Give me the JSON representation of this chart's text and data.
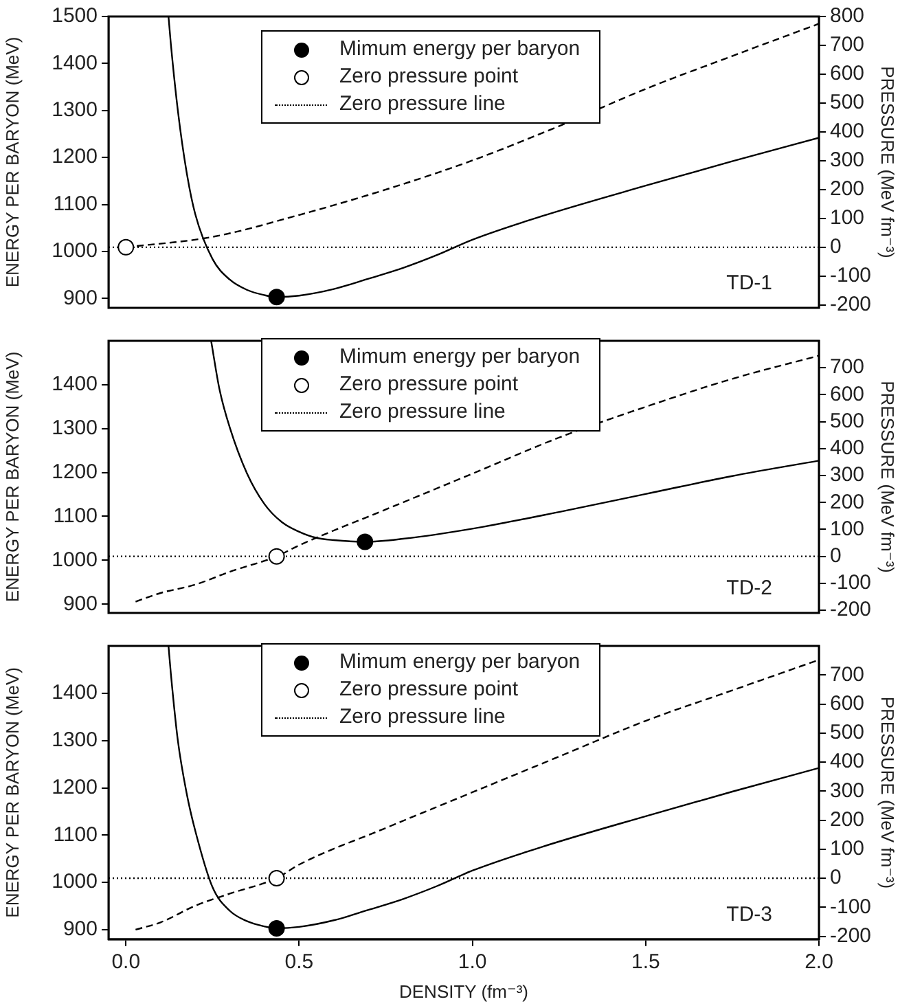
{
  "chart_data": [
    {
      "type": "line",
      "ylabel": "ENERGY PER BARYON (MeV)",
      "y2label": "PRESSURE (MeV fm⁻³)",
      "xlim": [
        -0.05,
        2.0
      ],
      "xticks": [
        0,
        0.5,
        1.0,
        1.5,
        2.0
      ],
      "ylim": [
        880,
        1500
      ],
      "yticks": [
        900,
        1000,
        1100,
        1200,
        1300,
        1400,
        1500
      ],
      "y2lim": [
        -210,
        800
      ],
      "y2ticks": [
        -200,
        -100,
        0,
        100,
        200,
        300,
        400,
        500,
        600,
        700,
        800
      ],
      "tick_labels": "y",
      "legend": "top",
      "annotations": [
        "TD-1"
      ],
      "series": [
        {
          "color": "#000000",
          "line_style": "solid",
          "marker": "none",
          "x": [
            0.123,
            0.13,
            0.15,
            0.175,
            0.2,
            0.25,
            0.3,
            0.35,
            0.4,
            0.435,
            0.5,
            0.6,
            0.7,
            0.8,
            0.9,
            1.0,
            1.2,
            1.5,
            1.75,
            2.0
          ],
          "values": [
            1500,
            1440,
            1300,
            1170,
            1080,
            984,
            940,
            918,
            907,
            903,
            906,
            920,
            942,
            965,
            993,
            1025,
            1075,
            1140,
            1192,
            1242
          ]
        },
        {
          "color": "#000000",
          "line_style": "dashed",
          "marker": "none",
          "axis": "y2",
          "x": [
            0,
            0.25,
            0.5,
            0.75,
            1.0,
            1.25,
            1.5,
            1.75,
            2.0
          ],
          "values": [
            0,
            36,
            112,
            200,
            301,
            420,
            549,
            663,
            775
          ]
        },
        {
          "type": "scatter",
          "name": "Mimum energy per baryon",
          "color": "#000000",
          "marker": "circle",
          "x": [
            0.435
          ],
          "values": [
            903
          ]
        },
        {
          "type": "scatter",
          "name": "Zero pressure point",
          "color": "#ffffff",
          "marker": "circle",
          "axis": "y2",
          "x": [
            0
          ],
          "values": [
            0
          ]
        },
        {
          "type": "line",
          "name": "Zero pressure line",
          "color": "#000000",
          "line_style": "dotted",
          "marker": "none",
          "axis": "y2",
          "x": [
            -0.05,
            2.0
          ],
          "values": [
            0,
            0
          ]
        }
      ]
    },
    {
      "type": "line",
      "ylabel": "ENERGY PER BARYON (MeV)",
      "y2label": "PRESSURE (MeV fm⁻³)",
      "xlim": [
        -0.05,
        2.0
      ],
      "xticks": [
        0,
        0.5,
        1.0,
        1.5,
        2.0
      ],
      "ylim": [
        880,
        1500
      ],
      "yticks": [
        900,
        1000,
        1100,
        1200,
        1300,
        1400
      ],
      "y2lim": [
        -210,
        800
      ],
      "y2ticks": [
        -200,
        -100,
        0,
        100,
        200,
        300,
        400,
        500,
        600,
        700
      ],
      "tick_labels": "y",
      "legend": "top",
      "annotations": [
        "TD-2"
      ],
      "series": [
        {
          "color": "#000000",
          "line_style": "solid",
          "marker": "none",
          "x": [
            0.246,
            0.27,
            0.3,
            0.35,
            0.4,
            0.45,
            0.5,
            0.55,
            0.6,
            0.69,
            0.8,
            1.0,
            1.25,
            1.5,
            1.75,
            2.0
          ],
          "values": [
            1500,
            1390,
            1302,
            1197,
            1128,
            1087,
            1065,
            1051,
            1046,
            1042,
            1049,
            1072,
            1110,
            1151,
            1192,
            1227
          ]
        },
        {
          "color": "#000000",
          "line_style": "dashed",
          "marker": "none",
          "axis": "y2",
          "x": [
            0.028,
            0.1,
            0.2,
            0.3,
            0.435,
            0.5,
            0.75,
            1.0,
            1.25,
            1.5,
            1.75,
            2.0
          ],
          "values": [
            -168,
            -136,
            -105,
            -57,
            0,
            41,
            174,
            307,
            441,
            555,
            659,
            745
          ]
        },
        {
          "type": "scatter",
          "name": "Mimum energy per baryon",
          "color": "#000000",
          "marker": "circle",
          "x": [
            0.69
          ],
          "values": [
            1042
          ]
        },
        {
          "type": "scatter",
          "name": "Zero pressure point",
          "color": "#ffffff",
          "marker": "circle",
          "axis": "y2",
          "x": [
            0.435
          ],
          "values": [
            0
          ]
        },
        {
          "type": "line",
          "name": "Zero pressure line",
          "color": "#000000",
          "line_style": "dotted",
          "marker": "none",
          "axis": "y2",
          "x": [
            -0.05,
            2.0
          ],
          "values": [
            0,
            0
          ]
        }
      ]
    },
    {
      "type": "line",
      "xlabel": "DENSITY (fm⁻³)",
      "ylabel": "ENERGY PER BARYON (MeV)",
      "y2label": "PRESSURE (MeV fm⁻³)",
      "xlim": [
        -0.05,
        2.0
      ],
      "xticks": [
        {
          "value": 0,
          "label": "0.0"
        },
        0.5,
        {
          "value": 1,
          "label": "1.0"
        },
        1.5,
        {
          "value": 2,
          "label": "2.0"
        }
      ],
      "ylim": [
        880,
        1500
      ],
      "yticks": [
        900,
        1000,
        1100,
        1200,
        1300,
        1400
      ],
      "y2lim": [
        -210,
        800
      ],
      "y2ticks": [
        -200,
        -100,
        0,
        100,
        200,
        300,
        400,
        500,
        600,
        700
      ],
      "legend": "top",
      "annotations": [
        "TD-3"
      ],
      "series": [
        {
          "color": "#000000",
          "line_style": "solid",
          "marker": "none",
          "x": [
            0.123,
            0.13,
            0.15,
            0.175,
            0.2,
            0.25,
            0.3,
            0.35,
            0.4,
            0.435,
            0.5,
            0.6,
            0.7,
            0.8,
            0.9,
            1.0,
            1.2,
            1.5,
            1.75,
            2.0
          ],
          "values": [
            1500,
            1440,
            1300,
            1190,
            1110,
            990,
            940,
            918,
            907,
            903,
            906,
            920,
            942,
            965,
            993,
            1025,
            1075,
            1140,
            1192,
            1242
          ]
        },
        {
          "color": "#000000",
          "line_style": "dashed",
          "marker": "none",
          "axis": "y2",
          "x": [
            0.028,
            0.1,
            0.2,
            0.3,
            0.435,
            0.5,
            0.75,
            1.0,
            1.25,
            1.5,
            1.75,
            2.0
          ],
          "values": [
            -177,
            -152,
            -95,
            -53,
            0,
            47,
            173,
            296,
            419,
            542,
            647,
            752
          ]
        },
        {
          "type": "scatter",
          "name": "Mimum energy per baryon",
          "color": "#000000",
          "marker": "circle",
          "x": [
            0.435
          ],
          "values": [
            903
          ]
        },
        {
          "type": "scatter",
          "name": "Zero pressure point",
          "color": "#ffffff",
          "marker": "circle",
          "axis": "y2",
          "x": [
            0.435
          ],
          "values": [
            0
          ]
        },
        {
          "type": "line",
          "name": "Zero pressure line",
          "color": "#000000",
          "line_style": "dotted",
          "marker": "none",
          "axis": "y2",
          "x": [
            -0.05,
            2.0
          ],
          "values": [
            0,
            0
          ]
        }
      ]
    }
  ]
}
